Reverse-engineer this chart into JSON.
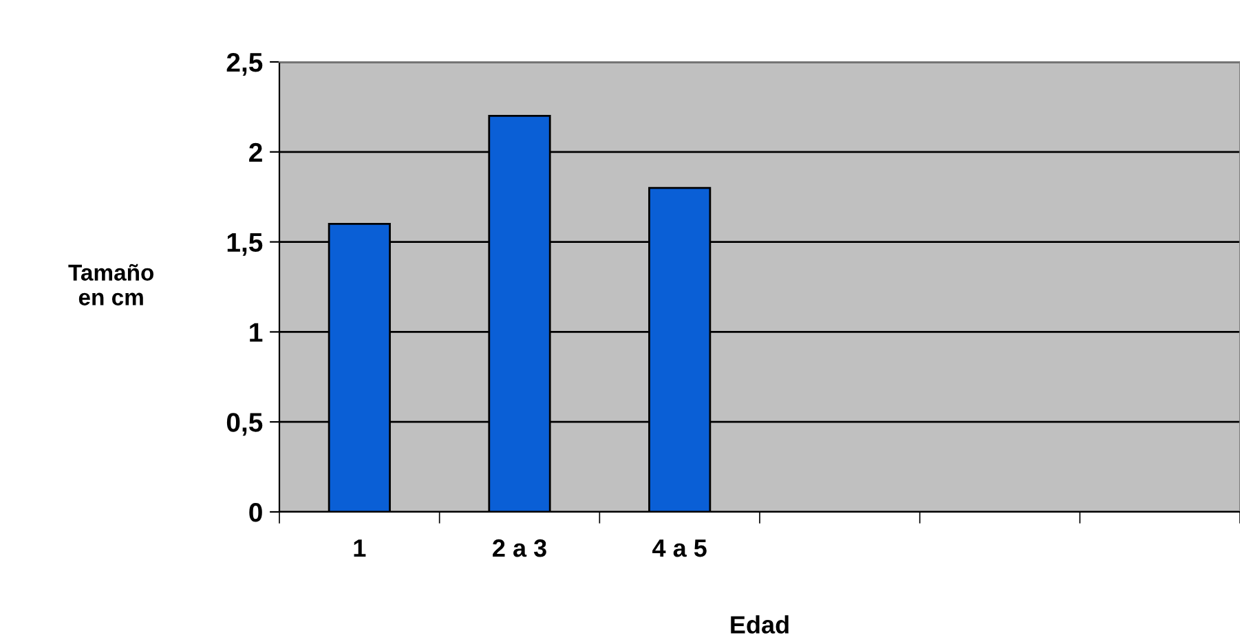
{
  "chart_data": {
    "type": "bar",
    "xlabel": "Edad",
    "ylabel": "Tamaño\nen cm",
    "categories": [
      "1",
      "2 a 3",
      "4 a 5",
      null,
      null,
      null
    ],
    "values": [
      1.6,
      2.2,
      1.8,
      null,
      null,
      null
    ],
    "color": "#0a5fd6",
    "ylim": [
      0,
      2.5
    ],
    "yticks": [
      0,
      {
        "value": 0.5,
        "label": "0,5"
      },
      1,
      {
        "value": 1.5,
        "label": "1,5"
      },
      2,
      {
        "value": 2.5,
        "label": "2,5"
      }
    ],
    "grid": "y"
  }
}
